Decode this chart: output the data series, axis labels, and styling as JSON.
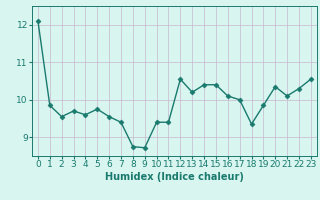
{
  "x": [
    0,
    1,
    2,
    3,
    4,
    5,
    6,
    7,
    8,
    9,
    10,
    11,
    12,
    13,
    14,
    15,
    16,
    17,
    18,
    19,
    20,
    21,
    22,
    23
  ],
  "y": [
    12.1,
    9.85,
    9.55,
    9.7,
    9.6,
    9.75,
    9.55,
    9.4,
    8.75,
    8.72,
    9.4,
    9.4,
    10.55,
    10.2,
    10.4,
    10.4,
    10.1,
    10.0,
    9.35,
    9.85,
    10.35,
    10.1,
    10.3,
    10.55
  ],
  "line_color": "#1a7a6e",
  "bg_color": "#d8f5f0",
  "grid_color": "#c8b8cc",
  "xlabel": "Humidex (Indice chaleur)",
  "ylim": [
    8.5,
    12.5
  ],
  "yticks": [
    9,
    10,
    11,
    12
  ],
  "xlim": [
    -0.5,
    23.5
  ],
  "xlabel_fontsize": 7,
  "tick_fontsize": 6.5,
  "marker": "D",
  "marker_size": 2.5,
  "linewidth": 1.0
}
